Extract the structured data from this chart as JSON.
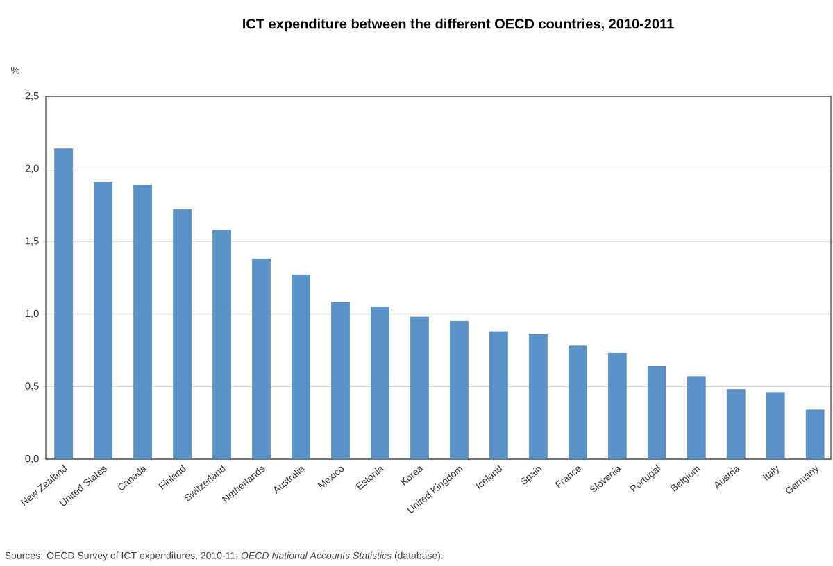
{
  "chart_data": {
    "type": "bar",
    "title": "ICT expenditure between the different OECD countries, 2010-2011",
    "ylabel": "%",
    "categories": [
      "New Zealand",
      "United States",
      "Canada",
      "Finland",
      "Switzerland",
      "Netherlands",
      "Australia",
      "Mexico",
      "Estonia",
      "Korea",
      "United Kingdom",
      "Iceland",
      "Spain",
      "France",
      "Slovenia",
      "Portugal",
      "Belgium",
      "Austria",
      "Italy",
      "Germany"
    ],
    "values": [
      2.14,
      1.91,
      1.89,
      1.72,
      1.58,
      1.38,
      1.27,
      1.08,
      1.05,
      0.98,
      0.95,
      0.88,
      0.86,
      0.78,
      0.73,
      0.64,
      0.57,
      0.48,
      0.46,
      0.34
    ],
    "color": "#5b93c8",
    "ylim": [
      0,
      2.5
    ],
    "yticks": [
      {
        "value": 0,
        "label": "0,0"
      },
      {
        "value": 0.5,
        "label": "0,5"
      },
      {
        "value": 1,
        "label": "1,0"
      },
      {
        "value": 1.5,
        "label": "1,5"
      },
      {
        "value": 2,
        "label": "2,0"
      },
      {
        "value": 2.5,
        "label": "2,5"
      }
    ],
    "grid": "y",
    "annotations": [
      "Sources: OECD Survey of ICT expenditures, 2010-11; *OECD National Accounts Statistics* (database)."
    ]
  }
}
